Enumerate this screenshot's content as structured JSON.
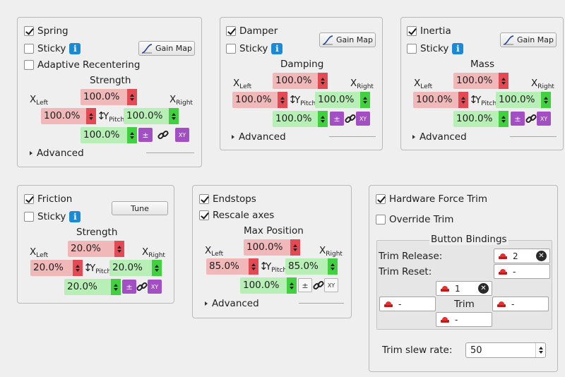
{
  "spring": {
    "enabled_label": "Spring",
    "sticky_label": "Sticky",
    "adaptive_label": "Adaptive Recentering",
    "gain_map_label": "Gain Map",
    "group_label": "Strength",
    "x_left": "X",
    "x_left_sub": "Left",
    "x_right": "X",
    "x_right_sub": "Right",
    "y_label": "Y",
    "y_sub": "Pitch",
    "top_value": "100.0%",
    "left_value": "100.0%",
    "right_value": "100.0%",
    "bottom_value": "100.0%",
    "pm_label": "±",
    "xy_label": "XY",
    "advanced_label": "Advanced"
  },
  "damper": {
    "enabled_label": "Damper",
    "sticky_label": "Sticky",
    "gain_map_label": "Gain Map",
    "group_label": "Damping",
    "x_left": "X",
    "x_left_sub": "Left",
    "x_right": "X",
    "x_right_sub": "Right",
    "y_label": "Y",
    "y_sub": "Pitch",
    "top_value": "100.0%",
    "left_value": "100.0%",
    "right_value": "100.0%",
    "bottom_value": "100.0%",
    "pm_label": "±",
    "xy_label": "XY",
    "advanced_label": "Advanced"
  },
  "inertia": {
    "enabled_label": "Inertia",
    "sticky_label": "Sticky",
    "gain_map_label": "Gain Map",
    "group_label": "Mass",
    "x_left": "X",
    "x_left_sub": "Left",
    "x_right": "X",
    "x_right_sub": "Right",
    "y_label": "Y",
    "y_sub": "Pitch",
    "top_value": "100.0%",
    "left_value": "100.0%",
    "right_value": "100.0%",
    "bottom_value": "100.0%",
    "pm_label": "±",
    "xy_label": "XY",
    "advanced_label": "Advanced"
  },
  "friction": {
    "enabled_label": "Friction",
    "sticky_label": "Sticky",
    "tune_label": "Tune",
    "group_label": "Strength",
    "x_left": "X",
    "x_left_sub": "Left",
    "x_right": "X",
    "x_right_sub": "Right",
    "y_label": "Y",
    "y_sub": "Pitch",
    "top_value": "20.0%",
    "left_value": "20.0%",
    "right_value": "20.0%",
    "bottom_value": "20.0%",
    "pm_label": "±",
    "xy_label": "XY"
  },
  "endstops": {
    "enabled_label": "Endstops",
    "rescale_label": "Rescale axes",
    "group_label": "Max Position",
    "x_left": "X",
    "x_left_sub": "Left",
    "x_right": "X",
    "x_right_sub": "Right",
    "y_label": "Y",
    "y_sub": "Pitch",
    "top_value": "100.0%",
    "left_value": "85.0%",
    "right_value": "85.0%",
    "bottom_value": "100.0%",
    "pm_label": "±",
    "xy_label": "XY",
    "advanced_label": "Advanced"
  },
  "trim": {
    "hardware_label": "Hardware Force Trim",
    "override_label": "Override Trim",
    "bindings_title": "Button Bindings",
    "release_label": "Trim Release:",
    "release_value": "2",
    "reset_label": "Trim Reset:",
    "reset_value": "-",
    "up_value": "1",
    "left_value": "-",
    "center_label": "Trim",
    "right_value": "-",
    "down_value": "-",
    "slew_label": "Trim slew rate:",
    "slew_value": "50"
  },
  "colors": {
    "red_field": "#f1b8b9",
    "red_arrows": "#e34a53",
    "green_field": "#b7efb7",
    "green_arrows": "#40d040",
    "purple": "#a34fc4",
    "info": "#1a8ad4"
  }
}
